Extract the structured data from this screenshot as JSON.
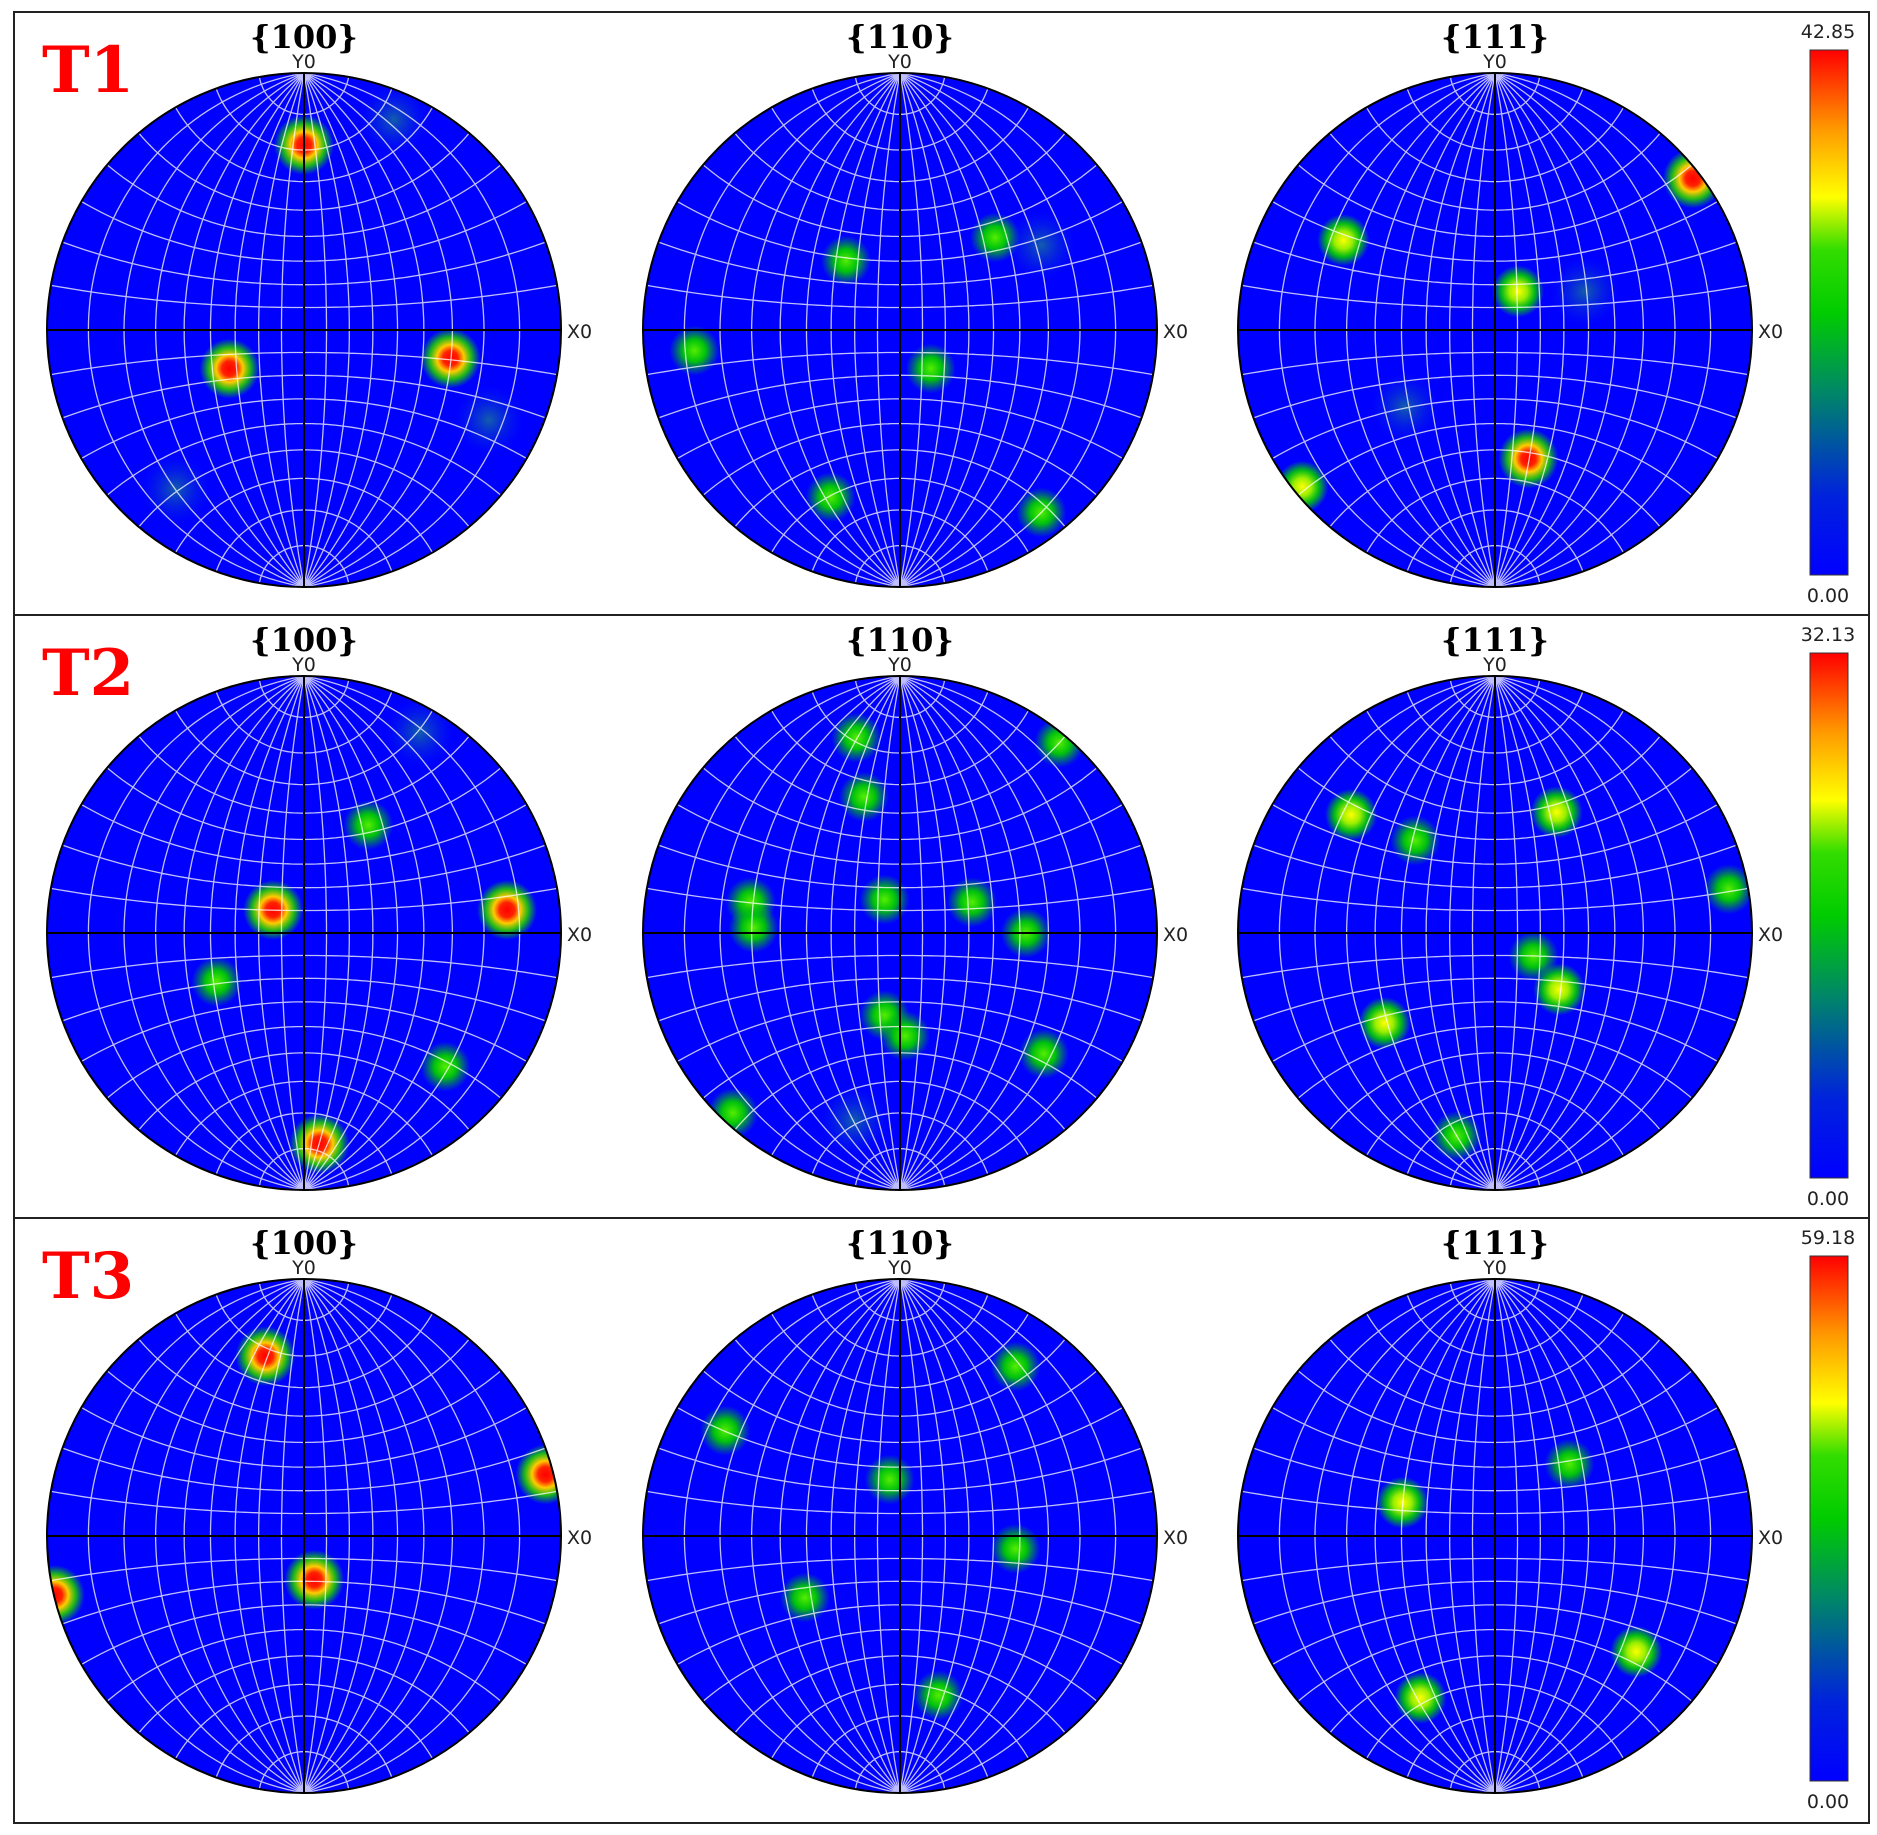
{
  "figure": {
    "x_axis_label": "X0",
    "y_axis_label": "Y0",
    "colormap": [
      "#0000ff",
      "#00cc00",
      "#ffff00",
      "#ff0000"
    ],
    "rows": [
      {
        "label": "T1",
        "scale_max": "42.85",
        "scale_min": "0.00",
        "panels": [
          {
            "title": "{100}",
            "poles": [
              [
                0.0,
                0.72,
                1.0
              ],
              [
                -0.29,
                -0.15,
                0.95
              ],
              [
                0.57,
                -0.11,
                0.95
              ],
              [
                0.35,
                0.82,
                0.2
              ],
              [
                0.72,
                -0.35,
                0.2
              ],
              [
                -0.5,
                -0.62,
                0.12
              ]
            ]
          },
          {
            "title": "{110}",
            "poles": [
              [
                -0.21,
                0.27,
                0.55
              ],
              [
                0.37,
                0.36,
                0.55
              ],
              [
                0.12,
                -0.15,
                0.5
              ],
              [
                -0.8,
                -0.08,
                0.55
              ],
              [
                -0.27,
                -0.65,
                0.55
              ],
              [
                0.55,
                -0.71,
                0.6
              ],
              [
                0.55,
                0.33,
                0.15
              ]
            ]
          },
          {
            "title": "{111}",
            "poles": [
              [
                -0.59,
                0.35,
                0.8
              ],
              [
                0.09,
                0.15,
                0.75
              ],
              [
                0.77,
                0.59,
                0.85
              ],
              [
                0.13,
                -0.5,
                0.9
              ],
              [
                -0.75,
                -0.61,
                0.8
              ],
              [
                -0.35,
                -0.3,
                0.15
              ],
              [
                0.35,
                0.15,
                0.12
              ]
            ]
          }
        ]
      },
      {
        "label": "T2",
        "scale_max": "32.13",
        "scale_min": "0.00",
        "panels": [
          {
            "title": "{100}",
            "poles": [
              [
                0.25,
                0.42,
                0.55
              ],
              [
                -0.12,
                0.09,
                0.85
              ],
              [
                0.79,
                0.09,
                0.95
              ],
              [
                -0.34,
                -0.19,
                0.6
              ],
              [
                0.55,
                -0.52,
                0.6
              ],
              [
                0.06,
                -0.82,
                1.0
              ],
              [
                0.45,
                0.78,
                0.15
              ]
            ]
          },
          {
            "title": "{110}",
            "poles": [
              [
                -0.18,
                -0.73,
                0.0
              ],
              [
                0.62,
                0.74,
                0.55
              ],
              [
                -0.14,
                0.53,
                0.5
              ],
              [
                -0.58,
                0.12,
                0.4
              ],
              [
                -0.57,
                0.02,
                0.5
              ],
              [
                -0.06,
                0.13,
                0.4
              ],
              [
                0.28,
                0.12,
                0.5
              ],
              [
                0.49,
                0.0,
                0.35
              ],
              [
                -0.06,
                -0.32,
                0.5
              ],
              [
                0.02,
                -0.4,
                0.4
              ],
              [
                0.56,
                -0.47,
                0.55
              ],
              [
                -0.65,
                -0.7,
                0.55
              ],
              [
                -0.17,
                0.76,
                0.35
              ]
            ]
          },
          {
            "title": "{111}",
            "poles": [
              [
                -0.56,
                0.46,
                0.8
              ],
              [
                -0.31,
                0.36,
                0.5
              ],
              [
                0.24,
                0.47,
                0.8
              ],
              [
                0.91,
                0.17,
                0.5
              ],
              [
                0.15,
                -0.09,
                0.45
              ],
              [
                0.25,
                -0.22,
                0.75
              ],
              [
                -0.43,
                -0.35,
                0.8
              ],
              [
                -0.15,
                -0.79,
                0.55
              ]
            ]
          }
        ]
      },
      {
        "label": "T3",
        "scale_max": "59.18",
        "scale_min": "0.00",
        "panels": [
          {
            "title": "{100}",
            "poles": [
              [
                -0.15,
                0.7,
                0.95
              ],
              [
                0.94,
                0.24,
                1.0
              ],
              [
                -0.97,
                -0.23,
                1.0
              ],
              [
                0.04,
                -0.17,
                0.9
              ]
            ]
          },
          {
            "title": "{110}",
            "poles": [
              [
                0.45,
                0.66,
                0.5
              ],
              [
                -0.68,
                0.41,
                0.5
              ],
              [
                -0.04,
                0.22,
                0.45
              ],
              [
                0.45,
                -0.05,
                0.45
              ],
              [
                -0.37,
                -0.24,
                0.45
              ],
              [
                0.15,
                -0.62,
                0.55
              ]
            ]
          },
          {
            "title": "{111}",
            "poles": [
              [
                0.29,
                0.28,
                0.6
              ],
              [
                -0.36,
                0.13,
                0.65
              ],
              [
                0.55,
                -0.45,
                0.75
              ],
              [
                -0.29,
                -0.63,
                0.7
              ]
            ]
          }
        ]
      }
    ]
  }
}
